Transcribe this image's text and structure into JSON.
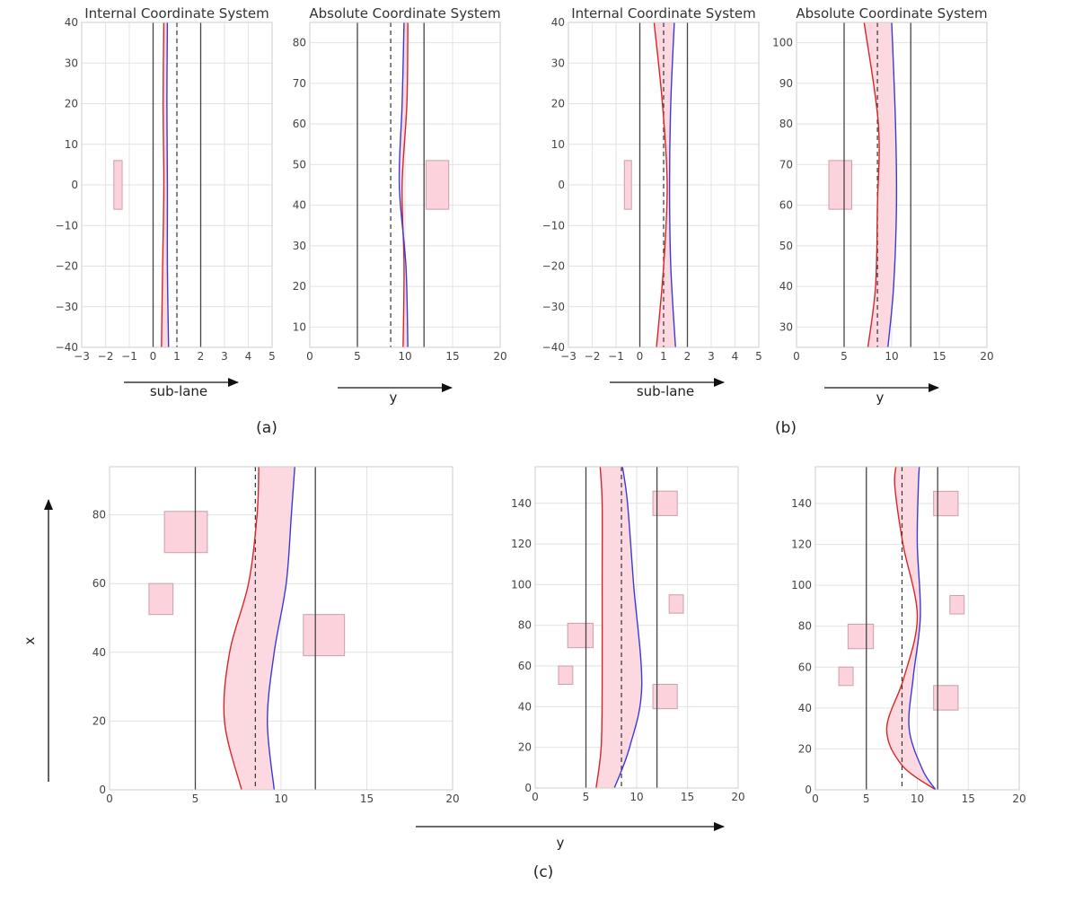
{
  "chart_data": [
    {
      "id": "a-internal",
      "type": "line",
      "title": "Internal Coordinate System",
      "xlabel": "sub-lane",
      "ylabel": "",
      "xlim": [
        -3,
        5
      ],
      "ylim": [
        -40,
        40
      ],
      "x_ticks": [
        -3,
        -2,
        -1,
        0,
        1,
        2,
        3,
        4,
        5
      ],
      "x_tick_labels": [
        "−3",
        "−2",
        "−1",
        "0",
        "1",
        "2",
        "3",
        "4",
        "5"
      ],
      "y_ticks": [
        -40,
        -30,
        -20,
        -10,
        0,
        10,
        20,
        30,
        40
      ],
      "y_tick_labels": [
        "−40",
        "−30",
        "−20",
        "−10",
        "0",
        "10",
        "20",
        "30",
        "40"
      ],
      "grid": true,
      "lane_lines": [
        0,
        2
      ],
      "center_line": 1,
      "series": [
        {
          "name": "red",
          "color": "#d62728",
          "points": [
            [
              0.35,
              -40
            ],
            [
              0.4,
              -20
            ],
            [
              0.45,
              0
            ],
            [
              0.42,
              20
            ],
            [
              0.45,
              40
            ]
          ]
        },
        {
          "name": "blue",
          "color": "#3a3ad6",
          "points": [
            [
              0.65,
              -40
            ],
            [
              0.6,
              -20
            ],
            [
              0.6,
              0
            ],
            [
              0.58,
              20
            ],
            [
              0.6,
              40
            ]
          ]
        }
      ],
      "obstacles": [
        [
          -1.65,
          -6,
          -1.3,
          6
        ]
      ]
    },
    {
      "id": "a-absolute",
      "type": "line",
      "title": "Absolute Coordinate System",
      "xlabel": "y",
      "ylabel": "",
      "xlim": [
        0,
        20
      ],
      "ylim": [
        5,
        85
      ],
      "x_ticks": [
        0,
        5,
        10,
        15,
        20
      ],
      "x_tick_labels": [
        "0",
        "5",
        "10",
        "15",
        "20"
      ],
      "y_ticks": [
        10,
        20,
        30,
        40,
        50,
        60,
        70,
        80
      ],
      "y_tick_labels": [
        "10",
        "20",
        "30",
        "40",
        "50",
        "60",
        "70",
        "80"
      ],
      "grid": true,
      "lane_lines": [
        5,
        12
      ],
      "center_line": 8.5,
      "series": [
        {
          "name": "red",
          "color": "#d62728",
          "points": [
            [
              9.8,
              5
            ],
            [
              9.9,
              25
            ],
            [
              9.7,
              45
            ],
            [
              10.2,
              65
            ],
            [
              10.3,
              85
            ]
          ]
        },
        {
          "name": "blue",
          "color": "#3a3ad6",
          "points": [
            [
              10.3,
              5
            ],
            [
              10.1,
              25
            ],
            [
              9.4,
              45
            ],
            [
              9.7,
              65
            ],
            [
              9.9,
              85
            ]
          ]
        }
      ],
      "obstacles": [
        [
          12.2,
          39,
          14.6,
          51
        ]
      ]
    },
    {
      "id": "b-internal",
      "type": "line",
      "title": "Internal Coordinate System",
      "xlabel": "sub-lane",
      "ylabel": "",
      "xlim": [
        -3,
        5
      ],
      "ylim": [
        -40,
        40
      ],
      "x_ticks": [
        -3,
        -2,
        -1,
        0,
        1,
        2,
        3,
        4,
        5
      ],
      "x_tick_labels": [
        "−3",
        "−2",
        "−1",
        "0",
        "1",
        "2",
        "3",
        "4",
        "5"
      ],
      "y_ticks": [
        -40,
        -30,
        -20,
        -10,
        0,
        10,
        20,
        30,
        40
      ],
      "y_tick_labels": [
        "−40",
        "−30",
        "−20",
        "−10",
        "0",
        "10",
        "20",
        "30",
        "40"
      ],
      "grid": true,
      "lane_lines": [
        0,
        2
      ],
      "center_line": 1,
      "series": [
        {
          "name": "red",
          "color": "#d62728",
          "points": [
            [
              0.7,
              -40
            ],
            [
              1.0,
              -20
            ],
            [
              1.15,
              0
            ],
            [
              0.95,
              20
            ],
            [
              0.6,
              40
            ]
          ]
        },
        {
          "name": "blue",
          "color": "#3a3ad6",
          "points": [
            [
              1.5,
              -40
            ],
            [
              1.3,
              -20
            ],
            [
              1.25,
              0
            ],
            [
              1.3,
              20
            ],
            [
              1.45,
              40
            ]
          ]
        }
      ],
      "obstacles": [
        [
          -0.65,
          -6,
          -0.35,
          6
        ]
      ]
    },
    {
      "id": "b-absolute",
      "type": "line",
      "title": "Absolute Coordinate System",
      "xlabel": "y",
      "ylabel": "",
      "xlim": [
        0,
        20
      ],
      "ylim": [
        25,
        105
      ],
      "x_ticks": [
        0,
        5,
        10,
        15,
        20
      ],
      "x_tick_labels": [
        "0",
        "5",
        "10",
        "15",
        "20"
      ],
      "y_ticks": [
        30,
        40,
        50,
        60,
        70,
        80,
        90,
        100
      ],
      "y_tick_labels": [
        "30",
        "40",
        "50",
        "60",
        "70",
        "80",
        "90",
        "100"
      ],
      "grid": true,
      "lane_lines": [
        5,
        12
      ],
      "center_line": 8.5,
      "series": [
        {
          "name": "red",
          "color": "#d62728",
          "points": [
            [
              7.5,
              25
            ],
            [
              8.3,
              40
            ],
            [
              8.5,
              60
            ],
            [
              8.6,
              80
            ],
            [
              7.1,
              105
            ]
          ]
        },
        {
          "name": "blue",
          "color": "#3a3ad6",
          "points": [
            [
              9.6,
              25
            ],
            [
              10.2,
              40
            ],
            [
              10.5,
              60
            ],
            [
              10.4,
              80
            ],
            [
              10.0,
              105
            ]
          ]
        }
      ],
      "obstacles": [
        [
          3.4,
          59,
          5.8,
          71
        ]
      ]
    },
    {
      "id": "c-1",
      "type": "line",
      "title": "",
      "xlabel": "y",
      "ylabel": "x",
      "xlim": [
        0,
        20
      ],
      "ylim": [
        0,
        94
      ],
      "x_ticks": [
        0,
        5,
        10,
        15,
        20
      ],
      "x_tick_labels": [
        "0",
        "5",
        "10",
        "15",
        "20"
      ],
      "y_ticks": [
        0,
        20,
        40,
        60,
        80
      ],
      "y_tick_labels": [
        "0",
        "20",
        "40",
        "60",
        "80"
      ],
      "grid": true,
      "lane_lines": [
        5,
        12
      ],
      "center_line": 8.5,
      "series": [
        {
          "name": "red",
          "color": "#d62728",
          "points": [
            [
              7.7,
              0
            ],
            [
              6.7,
              20
            ],
            [
              7.0,
              40
            ],
            [
              8.1,
              60
            ],
            [
              8.6,
              80
            ],
            [
              8.7,
              94
            ]
          ]
        },
        {
          "name": "blue",
          "color": "#3a3ad6",
          "points": [
            [
              9.6,
              0
            ],
            [
              9.2,
              20
            ],
            [
              9.6,
              40
            ],
            [
              10.3,
              60
            ],
            [
              10.6,
              80
            ],
            [
              10.8,
              94
            ]
          ]
        }
      ],
      "obstacles": [
        [
          3.2,
          69,
          5.7,
          81
        ],
        [
          2.3,
          51,
          3.7,
          60
        ],
        [
          11.3,
          39,
          13.7,
          51
        ]
      ]
    },
    {
      "id": "c-2",
      "type": "line",
      "title": "",
      "xlabel": "y",
      "ylabel": "",
      "xlim": [
        0,
        20
      ],
      "ylim": [
        0,
        158
      ],
      "x_ticks": [
        0,
        5,
        10,
        15,
        20
      ],
      "x_tick_labels": [
        "0",
        "5",
        "10",
        "15",
        "20"
      ],
      "y_ticks": [
        0,
        20,
        40,
        60,
        80,
        100,
        120,
        140
      ],
      "y_tick_labels": [
        "0",
        "20",
        "40",
        "60",
        "80",
        "100",
        "120",
        "140"
      ],
      "grid": true,
      "lane_lines": [
        5,
        12
      ],
      "center_line": 8.5,
      "series": [
        {
          "name": "red",
          "color": "#d62728",
          "points": [
            [
              6.0,
              0
            ],
            [
              6.5,
              20
            ],
            [
              6.6,
              50
            ],
            [
              6.6,
              100
            ],
            [
              6.6,
              140
            ],
            [
              6.4,
              158
            ]
          ]
        },
        {
          "name": "blue",
          "color": "#3a3ad6",
          "points": [
            [
              7.8,
              0
            ],
            [
              9.3,
              20
            ],
            [
              10.5,
              50
            ],
            [
              9.7,
              100
            ],
            [
              9.1,
              140
            ],
            [
              8.6,
              158
            ]
          ]
        }
      ],
      "obstacles": [
        [
          11.6,
          134,
          14.0,
          146
        ],
        [
          3.2,
          69,
          5.7,
          81
        ],
        [
          2.3,
          51,
          3.7,
          60
        ],
        [
          11.6,
          39,
          14.0,
          51
        ],
        [
          13.2,
          86,
          14.6,
          95
        ]
      ]
    },
    {
      "id": "c-3",
      "type": "line",
      "title": "",
      "xlabel": "y",
      "ylabel": "",
      "xlim": [
        0,
        20
      ],
      "ylim": [
        0,
        158
      ],
      "x_ticks": [
        0,
        5,
        10,
        15,
        20
      ],
      "x_tick_labels": [
        "0",
        "5",
        "10",
        "15",
        "20"
      ],
      "y_ticks": [
        0,
        20,
        40,
        60,
        80,
        100,
        120,
        140
      ],
      "y_tick_labels": [
        "0",
        "20",
        "40",
        "60",
        "80",
        "100",
        "120",
        "140"
      ],
      "grid": true,
      "lane_lines": [
        5,
        12
      ],
      "center_line": 8.5,
      "series": [
        {
          "name": "red",
          "color": "#d62728",
          "points": [
            [
              11.8,
              0
            ],
            [
              8.5,
              12
            ],
            [
              7.0,
              30
            ],
            [
              8.7,
              55
            ],
            [
              10.0,
              85
            ],
            [
              8.6,
              120
            ],
            [
              7.8,
              148
            ],
            [
              7.9,
              158
            ]
          ]
        },
        {
          "name": "blue",
          "color": "#3a3ad6",
          "points": [
            [
              11.8,
              0
            ],
            [
              10.5,
              10
            ],
            [
              9.2,
              30
            ],
            [
              9.6,
              55
            ],
            [
              10.3,
              85
            ],
            [
              10.0,
              120
            ],
            [
              10.1,
              148
            ],
            [
              10.2,
              158
            ]
          ]
        }
      ],
      "obstacles": [
        [
          11.6,
          134,
          14.0,
          146
        ],
        [
          3.2,
          69,
          5.7,
          81
        ],
        [
          2.3,
          51,
          3.7,
          60
        ],
        [
          11.6,
          39,
          14.0,
          51
        ],
        [
          13.2,
          86,
          14.6,
          95
        ]
      ]
    }
  ],
  "captions": {
    "a": "(a)",
    "b": "(b)",
    "c": "(c)"
  },
  "axis_arrow_labels": {
    "a_left": "sub-lane",
    "a_right": "y",
    "b_left": "sub-lane",
    "b_right": "y",
    "c_x": "x",
    "c_y": "y"
  },
  "colors": {
    "fill": "#fcd9e0",
    "obstacle_fill": "#fcd3dd",
    "obstacle_stroke": "#c7a0a8",
    "lane": "#444444",
    "grid": "#e2e2e2"
  }
}
